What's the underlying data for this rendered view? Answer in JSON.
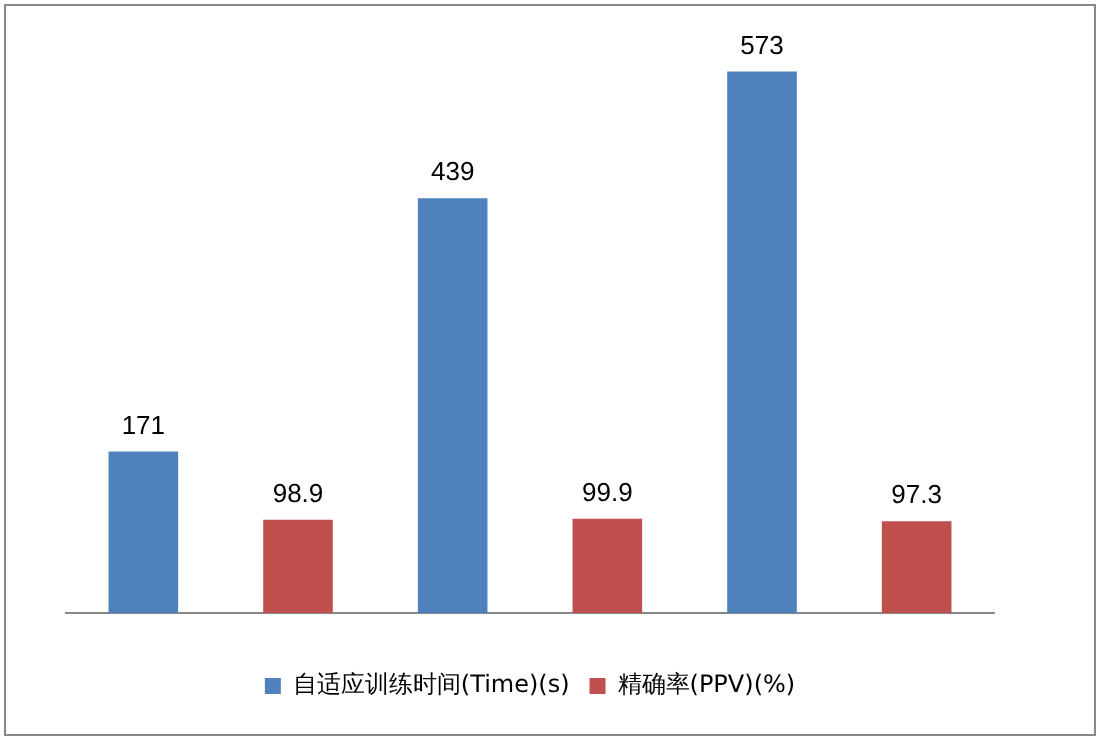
{
  "chart_data": {
    "type": "bar",
    "categories": [
      null,
      null,
      null
    ],
    "series": [
      {
        "name": "自适应训练时间(Time)(s)",
        "color": "#4f81bd",
        "values": [
          171,
          439,
          573
        ]
      },
      {
        "name": "精确率(PPV)(%)",
        "color": "#c0504d",
        "values": [
          98.9,
          99.9,
          97.3
        ]
      }
    ],
    "data_labels": true,
    "grid": false,
    "legend": "bottom"
  }
}
